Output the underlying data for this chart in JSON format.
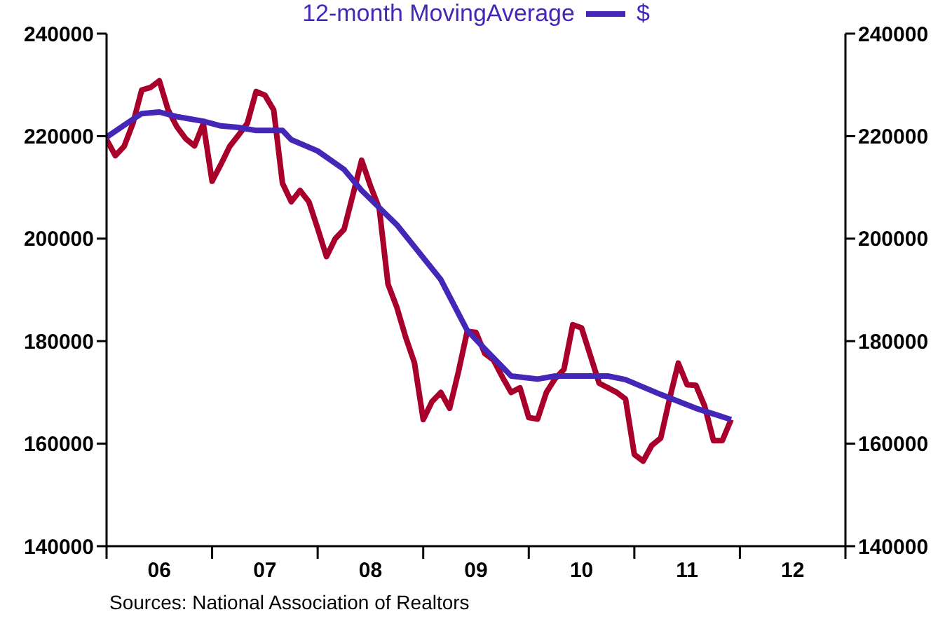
{
  "chart_data": {
    "type": "line",
    "annotations": [
      "$",
      "Sources:  National Association of Realtors"
    ],
    "legend": "top",
    "line_style": "solid",
    "xlim": [
      "2006-01",
      "2013-01"
    ],
    "xticks": [
      {
        "value": "2006-01",
        "label": null
      },
      {
        "value": "2006-07",
        "label": "06"
      },
      {
        "value": "2007-01",
        "label": null
      },
      {
        "value": "2007-07",
        "label": "07"
      },
      {
        "value": "2008-01",
        "label": null
      },
      {
        "value": "2008-07",
        "label": "08"
      },
      {
        "value": "2009-01",
        "label": null
      },
      {
        "value": "2009-07",
        "label": "09"
      },
      {
        "value": "2010-01",
        "label": null
      },
      {
        "value": "2010-07",
        "label": "10"
      },
      {
        "value": "2011-01",
        "label": null
      },
      {
        "value": "2011-07",
        "label": "11"
      },
      {
        "value": "2012-01",
        "label": null
      },
      {
        "value": "2012-07",
        "label": "12"
      },
      {
        "value": "2013-01",
        "label": null
      }
    ],
    "ylim": [
      140000,
      240000
    ],
    "yticks": [
      140000,
      160000,
      180000,
      200000,
      220000,
      240000
    ],
    "y2lim": [
      140000,
      240000
    ],
    "y2ticks": [
      140000,
      160000,
      180000,
      200000,
      220000,
      240000
    ],
    "series": [
      {
        "color": "#a8002a",
        "x": [
          "2006-01",
          "2006-02",
          "2006-03",
          "2006-04",
          "2006-05",
          "2006-06",
          "2006-07",
          "2006-08",
          "2006-09",
          "2006-10",
          "2006-11",
          "2006-12",
          "2007-01",
          "2007-02",
          "2007-03",
          "2007-04",
          "2007-05",
          "2007-06",
          "2007-07",
          "2007-08",
          "2007-09",
          "2007-10",
          "2007-11",
          "2007-12",
          "2008-01",
          "2008-02",
          "2008-03",
          "2008-04",
          "2008-05",
          "2008-06",
          "2008-07",
          "2008-08",
          "2008-09",
          "2008-10",
          "2008-11",
          "2008-12",
          "2009-01",
          "2009-02",
          "2009-03",
          "2009-04",
          "2009-05",
          "2009-06",
          "2009-07",
          "2009-08",
          "2009-09",
          "2009-10",
          "2009-11",
          "2009-12",
          "2010-01",
          "2010-02",
          "2010-03",
          "2010-04",
          "2010-05",
          "2010-06",
          "2010-07",
          "2010-08",
          "2010-09",
          "2010-10",
          "2010-11",
          "2010-12",
          "2011-01",
          "2011-02",
          "2011-03",
          "2011-04",
          "2011-05",
          "2011-06",
          "2011-07",
          "2011-08",
          "2011-09",
          "2011-10",
          "2011-11",
          "2011-12"
        ],
        "values": [
          219300,
          216200,
          218000,
          222500,
          229000,
          229500,
          230800,
          225100,
          221800,
          219500,
          218100,
          222400,
          211200,
          214500,
          218000,
          220200,
          222500,
          228700,
          228000,
          225100,
          210800,
          207200,
          209400,
          207200,
          202000,
          196500,
          200000,
          201800,
          208500,
          215300,
          210300,
          205900,
          191100,
          186600,
          180800,
          175800,
          164700,
          168200,
          170000,
          166900,
          174000,
          181900,
          181700,
          177600,
          176300,
          173000,
          170000,
          170900,
          165100,
          164800,
          170000,
          172700,
          174500,
          183200,
          182600,
          177200,
          171800,
          170900,
          170000,
          168700,
          157900,
          156600,
          159700,
          161100,
          168700,
          175700,
          171500,
          171400,
          167300,
          160600,
          160600,
          164700
        ]
      },
      {
        "name": "12-month MovingAverage",
        "color": "#4527b8",
        "x": [
          "2006-01",
          "2006-04",
          "2006-05",
          "2006-07",
          "2006-09",
          "2006-12",
          "2007-02",
          "2007-04",
          "2007-06",
          "2007-09",
          "2007-10",
          "2008-01",
          "2008-04",
          "2008-06",
          "2008-10",
          "2009-03",
          "2009-06",
          "2009-08",
          "2009-11",
          "2010-02",
          "2010-04",
          "2010-10",
          "2010-12",
          "2011-04",
          "2011-08",
          "2011-12"
        ],
        "values": [
          219800,
          223300,
          224400,
          224700,
          223800,
          222900,
          222000,
          221700,
          221100,
          221100,
          219300,
          217100,
          213500,
          209400,
          202700,
          192000,
          182100,
          178500,
          173200,
          172600,
          173200,
          173200,
          172500,
          169600,
          166900,
          164700
        ]
      }
    ]
  }
}
